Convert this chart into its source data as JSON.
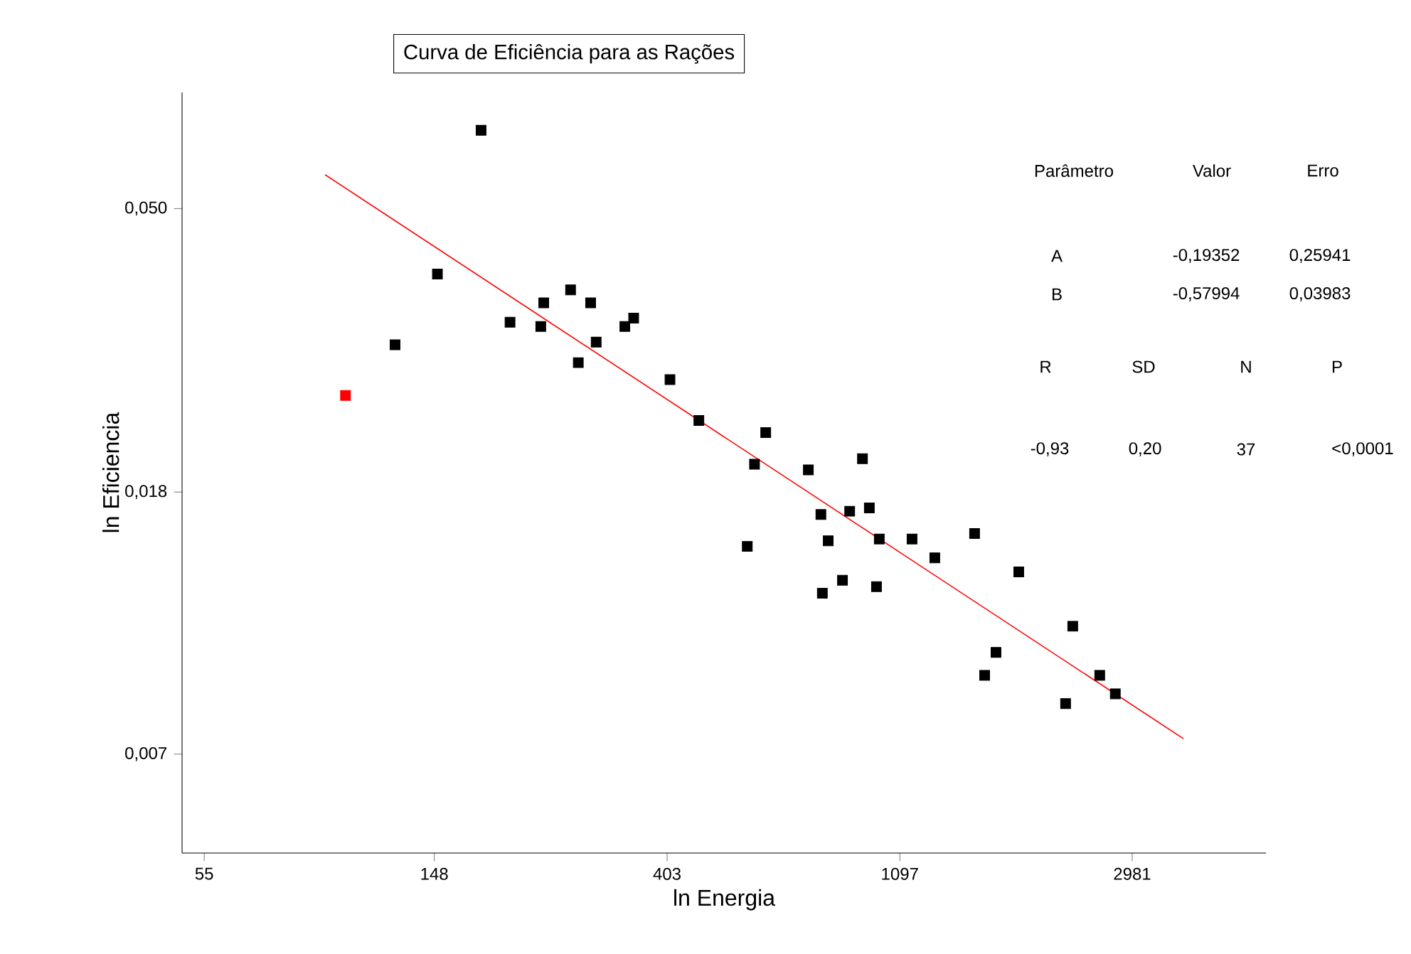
{
  "chart_data": {
    "type": "scatter",
    "title": "Curva de Eficiência para as Rações",
    "xlabel": "ln Energia",
    "ylabel": "ln Eficiencia",
    "log": "xy",
    "xlim": [
      50,
      5300
    ],
    "ylim": [
      0.0049,
      0.076
    ],
    "xticks": [
      55,
      148,
      403,
      1097,
      2981
    ],
    "yticks": [
      {
        "value": 0.007,
        "label": "0,007"
      },
      {
        "value": 0.018,
        "label": "0,018"
      },
      {
        "value": 0.05,
        "label": "0,050"
      }
    ],
    "marker": "square",
    "series": [
      {
        "color": "#ff0000",
        "x": [
          101
        ],
        "values": [
          0.0255
        ]
      },
      {
        "color": "#000000",
        "x": [
          125,
          150,
          181,
          205,
          234,
          237,
          266,
          275,
          290,
          297,
          336,
          349,
          408,
          462,
          587,
          616,
          569,
          740,
          781,
          786,
          806,
          857,
          884,
          934,
          962,
          992,
          1004,
          1156,
          1275,
          1513,
          1580,
          1659,
          1830,
          2238,
          2308,
          2592,
          2772
        ],
        "values": [
          0.0306,
          0.0395,
          0.0663,
          0.0332,
          0.0327,
          0.0356,
          0.0373,
          0.0287,
          0.0356,
          0.0309,
          0.0327,
          0.0337,
          0.027,
          0.0233,
          0.0199,
          0.0223,
          0.0148,
          0.0195,
          0.0166,
          0.0125,
          0.0151,
          0.0131,
          0.0168,
          0.0203,
          0.017,
          0.0128,
          0.0152,
          0.0152,
          0.0142,
          0.0155,
          0.0093,
          0.0101,
          0.0135,
          0.0084,
          0.0111,
          0.0093,
          0.0087
        ]
      },
      {
        "type": "line",
        "color": "#ff0000",
        "marker": "none",
        "x": [
          92.5,
          3717
        ],
        "values": [
          0.0565,
          0.0074
        ]
      }
    ],
    "annotations": [
      "Parâmetro",
      "Valor",
      "Erro",
      "A",
      "-0,19352",
      "0,25941",
      "B",
      "-0,57994",
      "0,03983",
      "R",
      "SD",
      "N",
      "P",
      "-0,93",
      "0,20",
      "37",
      "<0,0001"
    ]
  }
}
